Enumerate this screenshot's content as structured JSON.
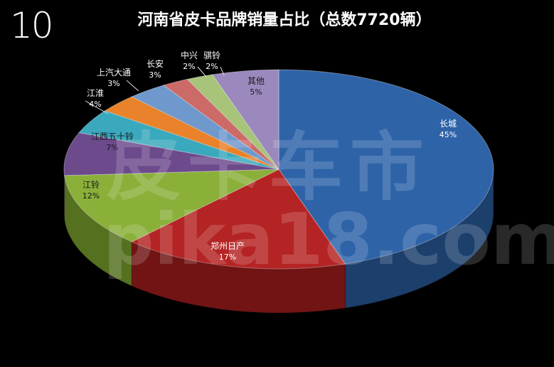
{
  "badge": "10",
  "watermark": {
    "text_cn": "皮卡车市",
    "text_url": "pika18.com"
  },
  "chart_data": {
    "type": "pie",
    "title": "河南省皮卡品牌销量占比（总数7720辆）",
    "legend": "none",
    "slices": [
      {
        "label": "长城",
        "value": 45,
        "value_label": "45%",
        "color": "#2e63a8",
        "side": "#1c3f6c"
      },
      {
        "label": "郑州日产",
        "value": 17,
        "value_label": "17%",
        "color": "#b52424",
        "side": "#721414"
      },
      {
        "label": "江铃",
        "value": 12,
        "value_label": "12%",
        "color": "#8ab03a",
        "side": "#55701f"
      },
      {
        "label": "江西五十铃",
        "value": 7,
        "value_label": "7%",
        "color": "#6c4a8c",
        "side": "#432c58"
      },
      {
        "label": "江淮",
        "value": 4,
        "value_label": "4%",
        "color": "#3aa8bd",
        "side": "#226876"
      },
      {
        "label": "上汽大通",
        "value": 3,
        "value_label": "3%",
        "color": "#e9822a",
        "side": "#9a5112"
      },
      {
        "label": "长安",
        "value": 3,
        "value_label": "3%",
        "color": "#6f98cc",
        "side": "#44648a"
      },
      {
        "label": "中兴",
        "value": 2,
        "value_label": "2%",
        "color": "#cc6a68",
        "side": "#864241"
      },
      {
        "label": "骐铃",
        "value": 2,
        "value_label": "2%",
        "color": "#a7c47a",
        "side": "#6b8248"
      },
      {
        "label": "其他",
        "value": 5,
        "value_label": "5%",
        "color": "#9b89bd",
        "side": "#62557c"
      }
    ]
  }
}
